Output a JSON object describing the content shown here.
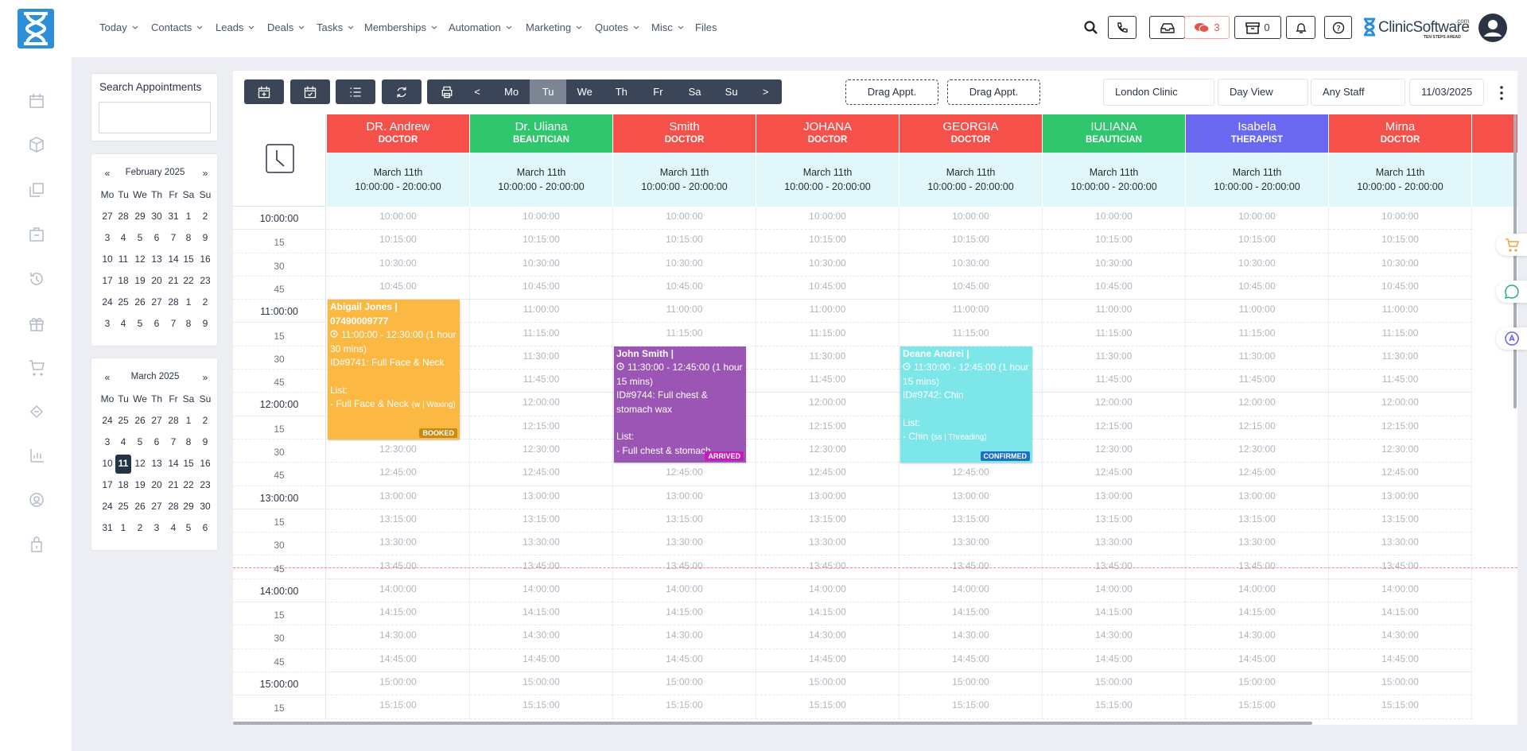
{
  "header": {
    "menu": [
      {
        "label": "Today",
        "dropdown": true
      },
      {
        "label": "Contacts",
        "dropdown": true
      },
      {
        "label": "Leads",
        "dropdown": true
      },
      {
        "label": "Deals",
        "dropdown": true
      },
      {
        "label": "Tasks",
        "dropdown": true
      },
      {
        "label": "Memberships",
        "dropdown": true
      },
      {
        "label": "Automation",
        "dropdown": true
      },
      {
        "label": "Marketing",
        "dropdown": true
      },
      {
        "label": "Quotes",
        "dropdown": true
      },
      {
        "label": "Misc",
        "dropdown": true
      },
      {
        "label": "Files",
        "dropdown": false
      }
    ],
    "chat_count": 3,
    "box_count": 0,
    "brand": {
      "name": "ClinicSoftware",
      "domain": ".com",
      "tagline": "TEN STEPS AHEAD"
    }
  },
  "sidebar": {
    "search_title": "Search Appointments",
    "calendars": [
      {
        "prev": "«",
        "title": "February 2025",
        "next": "»",
        "weekdays": [
          "Mo",
          "Tu",
          "We",
          "Th",
          "Fr",
          "Sa",
          "Su"
        ],
        "weeks": [
          [
            27,
            28,
            29,
            30,
            31,
            1,
            2
          ],
          [
            3,
            4,
            5,
            6,
            7,
            8,
            9
          ],
          [
            10,
            11,
            12,
            13,
            14,
            15,
            16
          ],
          [
            17,
            18,
            19,
            20,
            21,
            22,
            23
          ],
          [
            24,
            25,
            26,
            27,
            28,
            1,
            2
          ],
          [
            3,
            4,
            5,
            6,
            7,
            8,
            9
          ]
        ]
      },
      {
        "prev": "«",
        "title": "March 2025",
        "next": "»",
        "weekdays": [
          "Mo",
          "Tu",
          "We",
          "Th",
          "Fr",
          "Sa",
          "Su"
        ],
        "weeks": [
          [
            24,
            25,
            26,
            27,
            28,
            1,
            2
          ],
          [
            3,
            4,
            5,
            6,
            7,
            8,
            9
          ],
          [
            10,
            11,
            12,
            13,
            14,
            15,
            16
          ],
          [
            17,
            18,
            19,
            20,
            21,
            22,
            23
          ],
          [
            24,
            25,
            26,
            27,
            28,
            29,
            30
          ],
          [
            31,
            1,
            2,
            3,
            4,
            5,
            6
          ]
        ]
      }
    ]
  },
  "toolbar": {
    "prev": "<",
    "days": [
      {
        "label": "Mo",
        "active": false
      },
      {
        "label": "Tu",
        "active": true
      },
      {
        "label": "We",
        "active": false
      },
      {
        "label": "Th",
        "active": false
      },
      {
        "label": "Fr",
        "active": false
      },
      {
        "label": "Sa",
        "active": false
      },
      {
        "label": "Su",
        "active": false
      }
    ],
    "next": ">",
    "drag_buttons": [
      "Drag Appt.",
      "Drag Appt."
    ],
    "filters": [
      "London Clinic",
      "Day View",
      "Any Staff",
      "11/03/2025"
    ]
  },
  "schedule": {
    "date": "March 11th",
    "hours": "10:00:00 - 20:00:00",
    "time_labels": [
      "10:00:00",
      "15",
      "30",
      "45",
      "11:00:00",
      "15",
      "30",
      "45",
      "12:00:00",
      "15",
      "30",
      "45",
      "13:00:00",
      "15",
      "30",
      "45",
      "14:00:00",
      "15",
      "30",
      "45",
      "15:00:00",
      "15"
    ],
    "slots": [
      "10:00:00",
      "10:15:00",
      "10:30:00",
      "10:45:00",
      "11:00:00",
      "11:15:00",
      "11:30:00",
      "11:45:00",
      "12:00:00",
      "12:15:00",
      "12:30:00",
      "12:45:00",
      "13:00:00",
      "13:15:00",
      "13:30:00",
      "13:45:00",
      "14:00:00",
      "14:15:00",
      "14:30:00",
      "14:45:00",
      "15:00:00",
      "15:15:00"
    ],
    "staff": [
      {
        "name": "DR. Andrew",
        "role": "DOCTOR",
        "color": "#f5514a",
        "appointments": [
          {
            "client": "Abigail Jones | 07490009777",
            "time": "11:00:00 - 12:30:00 (1 hour 30 mins)",
            "service": "ID#9741: Full Face & Neck",
            "list_title": "List:",
            "item": "- Full Face & Neck",
            "category": "(w | Waxing)",
            "status": "BOOKED",
            "color": "#fbb843",
            "status_color": "#c98a14"
          }
        ]
      },
      {
        "name": "Dr. Uliana",
        "role": "BEAUTICIAN",
        "color": "#2fc66e",
        "appointments": []
      },
      {
        "name": "Smith",
        "role": "DOCTOR",
        "color": "#f5514a",
        "appointments": [
          {
            "client": "John Smith |",
            "time": "11:30:00 - 12:45:00 (1 hour 15 mins)",
            "service": "ID#9744: Full chest & stomach wax",
            "list_title": "List:",
            "item": "- Full chest & stomach",
            "status": "ARRIVED",
            "color": "#9b56b5",
            "status_color": "#c21fb8"
          }
        ]
      },
      {
        "name": "JOHANA",
        "role": "DOCTOR",
        "color": "#f5514a",
        "appointments": []
      },
      {
        "name": "GEORGIA",
        "role": "DOCTOR",
        "color": "#f5514a",
        "appointments": [
          {
            "client": "Deane Andrei |",
            "time": "11:30:00 - 12:45:00 (1 hour 15 mins)",
            "service": "ID#9742: Chin",
            "list_title": "List:",
            "item": "- Chin",
            "category": "(ss | Threading)",
            "status": "CONFIRMED",
            "color": "#7de6e8",
            "status_color": "#1d6fc4"
          }
        ]
      },
      {
        "name": "IULIANA",
        "role": "BEAUTICIAN",
        "color": "#2fc66e",
        "appointments": []
      },
      {
        "name": "Isabela",
        "role": "THERAPIST",
        "color": "#6a68f0",
        "appointments": []
      },
      {
        "name": "Mirna",
        "role": "DOCTOR",
        "color": "#f5514a",
        "appointments": []
      }
    ]
  }
}
